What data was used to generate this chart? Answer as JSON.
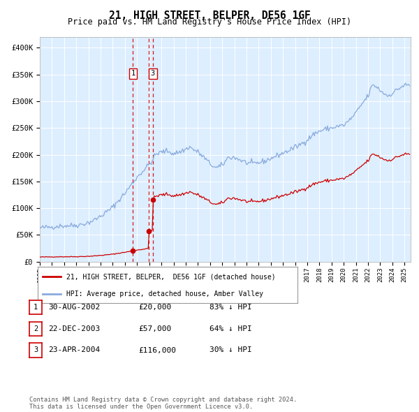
{
  "title": "21, HIGH STREET, BELPER, DE56 1GF",
  "subtitle": "Price paid vs. HM Land Registry's House Price Index (HPI)",
  "plot_bg_color": "#ddeeff",
  "hpi_color": "#88aadd",
  "price_color": "#cc0000",
  "vline_color": "#cc0000",
  "transactions": [
    {
      "num": 1,
      "date_label": "30-AUG-2002",
      "price": 20000,
      "pct": "83%",
      "x_year": 2002.66
    },
    {
      "num": 2,
      "date_label": "22-DEC-2003",
      "price": 57000,
      "pct": "64%",
      "x_year": 2003.97
    },
    {
      "num": 3,
      "date_label": "23-APR-2004",
      "price": 116000,
      "pct": "30%",
      "x_year": 2004.3
    }
  ],
  "legend_property": "21, HIGH STREET, BELPER,  DE56 1GF (detached house)",
  "legend_hpi": "HPI: Average price, detached house, Amber Valley",
  "footer": "Contains HM Land Registry data © Crown copyright and database right 2024.\nThis data is licensed under the Open Government Licence v3.0.",
  "ylim": [
    0,
    420000
  ],
  "yticks": [
    0,
    50000,
    100000,
    150000,
    200000,
    250000,
    300000,
    350000,
    400000
  ],
  "ytick_labels": [
    "£0",
    "£50K",
    "£100K",
    "£150K",
    "£200K",
    "£250K",
    "£300K",
    "£350K",
    "£400K"
  ],
  "xmin": 1995,
  "xmax": 2025.5,
  "hpi_anchors": [
    [
      1995.0,
      63000
    ],
    [
      1995.5,
      64000
    ],
    [
      1996.0,
      65000
    ],
    [
      1996.5,
      66500
    ],
    [
      1997.0,
      67000
    ],
    [
      1997.5,
      67500
    ],
    [
      1998.0,
      68000
    ],
    [
      1998.5,
      70000
    ],
    [
      1999.0,
      73000
    ],
    [
      1999.5,
      78000
    ],
    [
      2000.0,
      85000
    ],
    [
      2000.5,
      93000
    ],
    [
      2001.0,
      102000
    ],
    [
      2001.5,
      115000
    ],
    [
      2002.0,
      128000
    ],
    [
      2002.5,
      143000
    ],
    [
      2003.0,
      158000
    ],
    [
      2003.5,
      170000
    ],
    [
      2004.0,
      182000
    ],
    [
      2004.3,
      190000
    ],
    [
      2004.5,
      200000
    ],
    [
      2005.0,
      205000
    ],
    [
      2005.5,
      207000
    ],
    [
      2006.0,
      202000
    ],
    [
      2006.5,
      205000
    ],
    [
      2007.0,
      210000
    ],
    [
      2007.3,
      215000
    ],
    [
      2007.6,
      210000
    ],
    [
      2008.0,
      205000
    ],
    [
      2008.5,
      195000
    ],
    [
      2009.0,
      183000
    ],
    [
      2009.5,
      175000
    ],
    [
      2010.0,
      180000
    ],
    [
      2010.5,
      195000
    ],
    [
      2011.0,
      195000
    ],
    [
      2011.5,
      190000
    ],
    [
      2012.0,
      185000
    ],
    [
      2012.5,
      183000
    ],
    [
      2013.0,
      185000
    ],
    [
      2013.5,
      188000
    ],
    [
      2014.0,
      193000
    ],
    [
      2014.5,
      198000
    ],
    [
      2015.0,
      203000
    ],
    [
      2015.5,
      208000
    ],
    [
      2016.0,
      214000
    ],
    [
      2016.5,
      220000
    ],
    [
      2017.0,
      228000
    ],
    [
      2017.5,
      238000
    ],
    [
      2018.0,
      244000
    ],
    [
      2018.5,
      248000
    ],
    [
      2019.0,
      250000
    ],
    [
      2019.5,
      253000
    ],
    [
      2020.0,
      255000
    ],
    [
      2020.5,
      265000
    ],
    [
      2021.0,
      278000
    ],
    [
      2021.5,
      295000
    ],
    [
      2022.0,
      310000
    ],
    [
      2022.3,
      328000
    ],
    [
      2022.5,
      330000
    ],
    [
      2022.8,
      325000
    ],
    [
      2023.0,
      320000
    ],
    [
      2023.3,
      315000
    ],
    [
      2023.6,
      310000
    ],
    [
      2024.0,
      315000
    ],
    [
      2024.3,
      320000
    ],
    [
      2024.6,
      325000
    ],
    [
      2025.0,
      330000
    ]
  ],
  "noise_seed": 42,
  "noise_scale": 2500
}
